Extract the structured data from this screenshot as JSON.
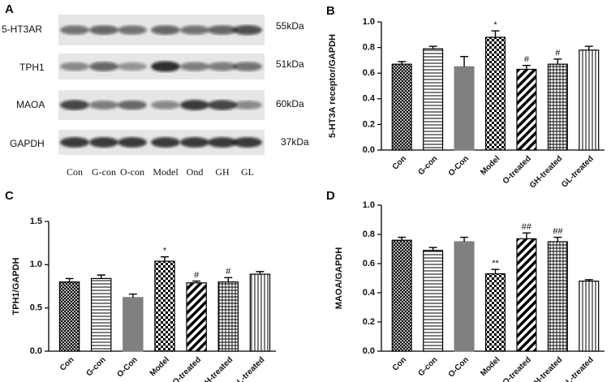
{
  "blot": {
    "panel": "A",
    "rows": [
      {
        "protein": "5-HT3AR",
        "size": "55kDa"
      },
      {
        "protein": "TPH1",
        "size": "51kDa"
      },
      {
        "protein": "MAOA",
        "size": "60kDa"
      },
      {
        "protein": "GAPDH",
        "size": "37kDa"
      }
    ],
    "lanes": [
      "Con",
      "G-con",
      "O-con",
      "Model",
      "Ond",
      "GH",
      "GL"
    ]
  },
  "chart_data": [
    {
      "type": "bar",
      "panel": "B",
      "y_label": "5-HT3A receptor/GAPDH",
      "categories": [
        "Con",
        "G-con",
        "O-Con",
        "Model",
        "O-treated",
        "GH-treated",
        "GL-treated"
      ],
      "values": [
        0.67,
        0.79,
        0.65,
        0.88,
        0.63,
        0.67,
        0.78
      ],
      "errors": [
        0.02,
        0.02,
        0.08,
        0.05,
        0.03,
        0.04,
        0.03
      ],
      "annotations": [
        null,
        null,
        null,
        "*",
        "#",
        "#",
        null
      ],
      "ylim": [
        0,
        1.0
      ],
      "yticks": [
        {
          "value": 0,
          "label": "0.0"
        },
        0.2,
        0.4,
        0.6,
        0.8,
        {
          "value": 1.0,
          "label": "1.0"
        }
      ],
      "color": "#808080"
    },
    {
      "type": "bar",
      "panel": "C",
      "y_label": "TPH1/GAPDH",
      "categories": [
        "Con",
        "G-con",
        "O-Con",
        "Model",
        "O-treated",
        "GH-treated",
        "GL-treated"
      ],
      "values": [
        0.8,
        0.84,
        0.62,
        1.04,
        0.79,
        0.8,
        0.89
      ],
      "errors": [
        0.04,
        0.04,
        0.04,
        0.05,
        0.02,
        0.05,
        0.03
      ],
      "annotations": [
        null,
        null,
        null,
        "*",
        "#",
        "#",
        null
      ],
      "ylim": [
        0,
        1.5
      ],
      "yticks": [
        {
          "value": 0,
          "label": "0.0"
        },
        0.5,
        {
          "value": 1.0,
          "label": "1.0"
        },
        1.5
      ],
      "color": "#808080"
    },
    {
      "type": "bar",
      "panel": "D",
      "y_label": "MAOA/GAPDH",
      "categories": [
        "Con",
        "G-con",
        "O-Con",
        "Model",
        "O-treated",
        "GH-treated",
        "GL-treated"
      ],
      "values": [
        0.76,
        0.69,
        0.75,
        0.53,
        0.77,
        0.75,
        0.48
      ],
      "errors": [
        0.02,
        0.02,
        0.03,
        0.03,
        0.04,
        0.03,
        0.01
      ],
      "annotations": [
        null,
        null,
        null,
        "**",
        "##",
        "##",
        null
      ],
      "ylim": [
        0,
        1.0
      ],
      "yticks": [
        {
          "value": 0,
          "label": "0.0"
        },
        0.2,
        0.4,
        0.6,
        0.8,
        {
          "value": 1.0,
          "label": "1.0"
        }
      ],
      "color": "#808080"
    }
  ]
}
